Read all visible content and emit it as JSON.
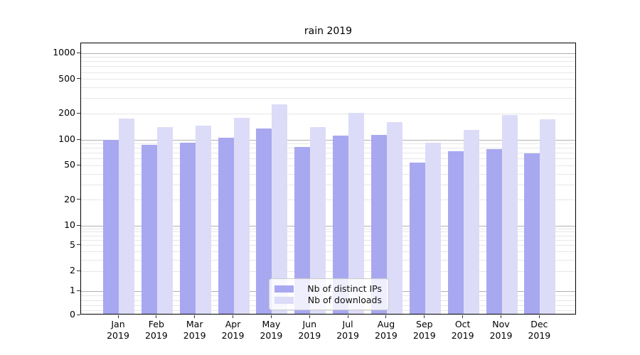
{
  "title": "rain 2019",
  "chart_data": {
    "type": "bar",
    "title": "rain 2019",
    "categories": [
      {
        "month": "Jan",
        "year": "2019"
      },
      {
        "month": "Feb",
        "year": "2019"
      },
      {
        "month": "Mar",
        "year": "2019"
      },
      {
        "month": "Apr",
        "year": "2019"
      },
      {
        "month": "May",
        "year": "2019"
      },
      {
        "month": "Jun",
        "year": "2019"
      },
      {
        "month": "Jul",
        "year": "2019"
      },
      {
        "month": "Aug",
        "year": "2019"
      },
      {
        "month": "Sep",
        "year": "2019"
      },
      {
        "month": "Oct",
        "year": "2019"
      },
      {
        "month": "Nov",
        "year": "2019"
      },
      {
        "month": "Dec",
        "year": "2019"
      }
    ],
    "series": [
      {
        "name": "Nb of distinct IPs",
        "color": "#a8a8f0",
        "values": [
          100,
          88,
          93,
          106,
          136,
          83,
          112,
          115,
          54,
          74,
          78,
          70
        ]
      },
      {
        "name": "Nb of downloads",
        "color": "#dcdcf8",
        "values": [
          176,
          140,
          146,
          180,
          257,
          141,
          206,
          161,
          92,
          131,
          194,
          173
        ]
      }
    ],
    "y_axis": {
      "scale": "symlog",
      "tick_values": [
        1000,
        500,
        200,
        100,
        50,
        20,
        10,
        5,
        2,
        1,
        0
      ],
      "tick_labels": [
        "1000",
        "500",
        "200",
        "100",
        "50",
        "20",
        "10",
        "5",
        "2",
        "1",
        "0"
      ]
    },
    "grid": {
      "major_values": [
        1,
        10,
        100,
        1000
      ],
      "minor_values": [
        0.2,
        0.4,
        0.6,
        0.8,
        2,
        3,
        4,
        5,
        6,
        7,
        8,
        9,
        20,
        30,
        40,
        50,
        60,
        70,
        80,
        90,
        200,
        300,
        400,
        500,
        600,
        700,
        800,
        900
      ]
    },
    "legend": {
      "position": "lower-center"
    },
    "colors": {
      "major_grid": "#b0b0b0",
      "minor_grid": "#e7e7e7",
      "spine": "#000000",
      "text": "#000000"
    }
  }
}
